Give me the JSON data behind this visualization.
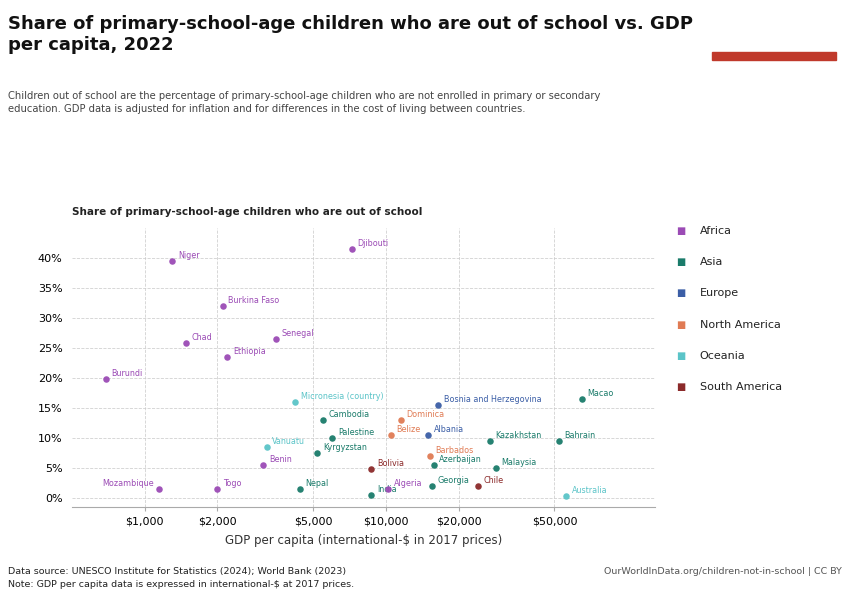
{
  "title": "Share of primary-school-age children who are out of school vs. GDP\nper capita, 2022",
  "subtitle": "Children out of school are the percentage of primary-school-age children who are not enrolled in primary or secondary\neducation. GDP data is adjusted for inflation and for differences in the cost of living between countries.",
  "ylabel": "Share of primary-school-age children who are out of school",
  "xlabel": "GDP per capita (international-$ in 2017 prices)",
  "datasource": "Data source: UNESCO Institute for Statistics (2024); World Bank (2023)",
  "note": "Note: GDP per capita data is expressed in international-$ at 2017 prices.",
  "url": "OurWorldInData.org/children-not-in-school | CC BY",
  "colors": {
    "Africa": "#9B4BB5",
    "Asia": "#1A7B6A",
    "Europe": "#3B5EA6",
    "North America": "#E07B54",
    "Oceania": "#5BC4C8",
    "South America": "#8B2A2A"
  },
  "points": [
    {
      "country": "Niger",
      "gdp": 1300,
      "share": 39.5,
      "region": "Africa",
      "xoff": 4,
      "yoff": 1,
      "ha": "left"
    },
    {
      "country": "Burundi",
      "gdp": 690,
      "share": 19.8,
      "region": "Africa",
      "xoff": 4,
      "yoff": 1,
      "ha": "left"
    },
    {
      "country": "Mozambique",
      "gdp": 1150,
      "share": 1.5,
      "region": "Africa",
      "xoff": -4,
      "yoff": 1,
      "ha": "right"
    },
    {
      "country": "Chad",
      "gdp": 1480,
      "share": 25.8,
      "region": "Africa",
      "xoff": 4,
      "yoff": 1,
      "ha": "left"
    },
    {
      "country": "Togo",
      "gdp": 2000,
      "share": 1.5,
      "region": "Africa",
      "xoff": 4,
      "yoff": 1,
      "ha": "left"
    },
    {
      "country": "Burkina Faso",
      "gdp": 2100,
      "share": 32.0,
      "region": "Africa",
      "xoff": 4,
      "yoff": 1,
      "ha": "left"
    },
    {
      "country": "Ethiopia",
      "gdp": 2200,
      "share": 23.5,
      "region": "Africa",
      "xoff": 4,
      "yoff": 1,
      "ha": "left"
    },
    {
      "country": "Benin",
      "gdp": 3100,
      "share": 5.5,
      "region": "Africa",
      "xoff": 4,
      "yoff": 1,
      "ha": "left"
    },
    {
      "country": "Senegal",
      "gdp": 3500,
      "share": 26.5,
      "region": "Africa",
      "xoff": 4,
      "yoff": 1,
      "ha": "left"
    },
    {
      "country": "Algeria",
      "gdp": 10200,
      "share": 1.5,
      "region": "Africa",
      "xoff": 4,
      "yoff": 1,
      "ha": "left"
    },
    {
      "country": "Djibouti",
      "gdp": 7200,
      "share": 41.5,
      "region": "Africa",
      "xoff": 4,
      "yoff": 1,
      "ha": "left"
    },
    {
      "country": "Cambodia",
      "gdp": 5500,
      "share": 13.0,
      "region": "Asia",
      "xoff": 4,
      "yoff": 1,
      "ha": "left"
    },
    {
      "country": "Palestine",
      "gdp": 6000,
      "share": 10.0,
      "region": "Asia",
      "xoff": 4,
      "yoff": 1,
      "ha": "left"
    },
    {
      "country": "Kyrgyzstan",
      "gdp": 5200,
      "share": 7.5,
      "region": "Asia",
      "xoff": 4,
      "yoff": 1,
      "ha": "left"
    },
    {
      "country": "Nepal",
      "gdp": 4400,
      "share": 1.5,
      "region": "Asia",
      "xoff": 4,
      "yoff": 1,
      "ha": "left"
    },
    {
      "country": "India",
      "gdp": 8700,
      "share": 0.5,
      "region": "Asia",
      "xoff": 4,
      "yoff": 1,
      "ha": "left"
    },
    {
      "country": "Georgia",
      "gdp": 15500,
      "share": 2.0,
      "region": "Asia",
      "xoff": 4,
      "yoff": 1,
      "ha": "left"
    },
    {
      "country": "Azerbaijan",
      "gdp": 15800,
      "share": 5.5,
      "region": "Asia",
      "xoff": 4,
      "yoff": 1,
      "ha": "left"
    },
    {
      "country": "Kazakhstan",
      "gdp": 27000,
      "share": 9.5,
      "region": "Asia",
      "xoff": 4,
      "yoff": 1,
      "ha": "left"
    },
    {
      "country": "Malaysia",
      "gdp": 28500,
      "share": 5.0,
      "region": "Asia",
      "xoff": 4,
      "yoff": 1,
      "ha": "left"
    },
    {
      "country": "Macao",
      "gdp": 65000,
      "share": 16.5,
      "region": "Asia",
      "xoff": 4,
      "yoff": 1,
      "ha": "left"
    },
    {
      "country": "Bahrain",
      "gdp": 52000,
      "share": 9.5,
      "region": "Asia",
      "xoff": 4,
      "yoff": 1,
      "ha": "left"
    },
    {
      "country": "Albania",
      "gdp": 15000,
      "share": 10.5,
      "region": "Europe",
      "xoff": 4,
      "yoff": 1,
      "ha": "left"
    },
    {
      "country": "Bosnia and Herzegovina",
      "gdp": 16500,
      "share": 15.5,
      "region": "Europe",
      "xoff": 4,
      "yoff": 1,
      "ha": "left"
    },
    {
      "country": "Australia",
      "gdp": 56000,
      "share": 0.3,
      "region": "Oceania",
      "xoff": 4,
      "yoff": 1,
      "ha": "left"
    },
    {
      "country": "Micronesia (country)",
      "gdp": 4200,
      "share": 16.0,
      "region": "Oceania",
      "xoff": 4,
      "yoff": 1,
      "ha": "left"
    },
    {
      "country": "Vanuatu",
      "gdp": 3200,
      "share": 8.5,
      "region": "Oceania",
      "xoff": 4,
      "yoff": 1,
      "ha": "left"
    },
    {
      "country": "Dominica",
      "gdp": 11500,
      "share": 13.0,
      "region": "North America",
      "xoff": 4,
      "yoff": 1,
      "ha": "left"
    },
    {
      "country": "Belize",
      "gdp": 10500,
      "share": 10.5,
      "region": "North America",
      "xoff": 4,
      "yoff": 1,
      "ha": "left"
    },
    {
      "country": "Barbados",
      "gdp": 15200,
      "share": 7.0,
      "region": "North America",
      "xoff": 4,
      "yoff": 1,
      "ha": "left"
    },
    {
      "country": "Bolivia",
      "gdp": 8700,
      "share": 4.8,
      "region": "South America",
      "xoff": 4,
      "yoff": 1,
      "ha": "left"
    },
    {
      "country": "Chile",
      "gdp": 24000,
      "share": 2.0,
      "region": "South America",
      "xoff": 4,
      "yoff": 1,
      "ha": "left"
    }
  ],
  "xticks": [
    1000,
    2000,
    5000,
    10000,
    20000,
    50000
  ],
  "xtick_labels": [
    "$1,000",
    "$2,000",
    "$5,000",
    "$10,000",
    "$20,000",
    "$50,000"
  ],
  "yticks": [
    0,
    5,
    10,
    15,
    20,
    25,
    30,
    35,
    40
  ],
  "xlim": [
    500,
    130000
  ],
  "ylim": [
    -1.5,
    45
  ],
  "regions": [
    "Africa",
    "Asia",
    "Europe",
    "North America",
    "Oceania",
    "South America"
  ],
  "logo_bg": "#1a3a5c",
  "logo_red": "#c0392b"
}
